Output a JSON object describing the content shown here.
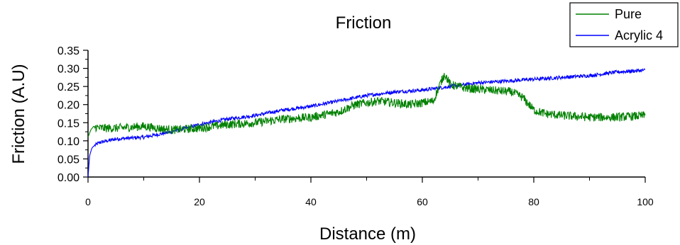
{
  "chart_data": {
    "type": "line",
    "title": "Friction",
    "xlabel": "Distance (m)",
    "ylabel": "Friction (A.U)",
    "xlim": [
      0,
      100
    ],
    "ylim": [
      0,
      0.35
    ],
    "xticks": [
      "0",
      "20",
      "40",
      "60",
      "80",
      "100"
    ],
    "yticks": [
      "0.00",
      "0.05",
      "0.10",
      "0.15",
      "0.20",
      "0.25",
      "0.30",
      "0.35"
    ],
    "grid": false,
    "legend_position": "top-right",
    "series": [
      {
        "name": "Pure",
        "color": "#008000",
        "x": [
          0,
          0.5,
          1,
          2,
          5,
          10,
          15,
          20,
          25,
          30,
          35,
          40,
          45,
          48,
          52,
          55,
          58,
          62,
          63,
          64,
          65,
          68,
          72,
          76,
          78,
          80,
          82,
          85,
          90,
          95,
          100
        ],
        "values": [
          0.11,
          0.13,
          0.14,
          0.135,
          0.135,
          0.14,
          0.13,
          0.135,
          0.145,
          0.15,
          0.16,
          0.165,
          0.18,
          0.2,
          0.21,
          0.205,
          0.2,
          0.21,
          0.25,
          0.285,
          0.255,
          0.245,
          0.24,
          0.235,
          0.22,
          0.185,
          0.175,
          0.17,
          0.165,
          0.165,
          0.17
        ],
        "noise": 0.012
      },
      {
        "name": "Acrylic 4",
        "color": "#0000ff",
        "x": [
          0,
          0.3,
          0.7,
          1,
          2,
          5,
          10,
          15,
          20,
          25,
          30,
          35,
          40,
          45,
          50,
          55,
          60,
          65,
          70,
          75,
          80,
          85,
          90,
          95,
          100
        ],
        "values": [
          0.0,
          0.06,
          0.08,
          0.085,
          0.095,
          0.105,
          0.11,
          0.125,
          0.145,
          0.16,
          0.17,
          0.185,
          0.195,
          0.21,
          0.225,
          0.235,
          0.24,
          0.25,
          0.26,
          0.265,
          0.27,
          0.275,
          0.28,
          0.29,
          0.295
        ],
        "noise": 0.005
      }
    ]
  }
}
